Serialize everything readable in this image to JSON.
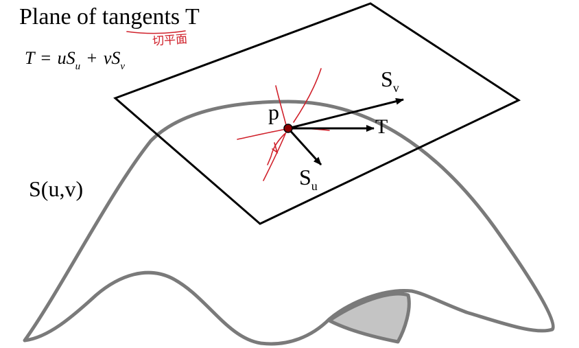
{
  "title": "Plane of tangents T",
  "equation": {
    "lhs": "T",
    "eq": "=",
    "u": "u",
    "S": "S",
    "sub_u": "u",
    "plus": "+",
    "v": "v",
    "sub_v": "v"
  },
  "surface_label": "S(u,v)",
  "point_label": "p",
  "vectors": {
    "t_label": "T",
    "sv_main": "S",
    "sv_sub": "v",
    "su_main": "S",
    "su_sub": "u"
  },
  "annotation": {
    "handwritten_note": "切平面",
    "ink_color": "#d0202a"
  },
  "colors": {
    "surface_stroke": "#7a7a7a",
    "surface_fill": "#ffffff",
    "shadow_fill": "#c4c4c4",
    "plane_stroke": "#000000",
    "point_fill": "#8a0000"
  }
}
